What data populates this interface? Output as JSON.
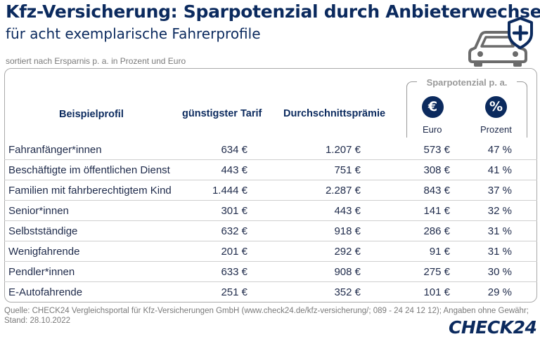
{
  "title": "Kfz-Versicherung: Sparpotenzial durch Anbieterwechsel",
  "subtitle": "für acht exemplarische Fahrerprofile",
  "caption": "sortiert nach Ersparnis p. a. in Prozent und Euro",
  "icons": {
    "car": "car-shield-plus-icon",
    "euro": "euro-icon",
    "percent": "percent-icon"
  },
  "colors": {
    "primary": "#0b2a5e",
    "muted": "#9a9a9a"
  },
  "headers": {
    "profile": "Beispielprofil",
    "cheapest": "günstigster Tarif",
    "average": "Durchschnittsprämie",
    "savings_group": "Sparpotenzial p. a.",
    "euro_symbol": "€",
    "percent_symbol": "%",
    "euro_label": "Euro",
    "percent_label": "Prozent"
  },
  "chart_data": {
    "type": "table",
    "columns": [
      "Beispielprofil",
      "günstigster Tarif",
      "Durchschnittsprämie",
      "Sparpotenzial p. a. Euro",
      "Sparpotenzial p. a. Prozent"
    ],
    "rows": [
      {
        "profile": "Fahranfänger*innen",
        "cheapest": "634 €",
        "average": "1.207 €",
        "save_eur": "573 €",
        "save_pct": "47 %"
      },
      {
        "profile": "Beschäftigte im öffentlichen Dienst",
        "cheapest": "443 €",
        "average": "751 €",
        "save_eur": "308 €",
        "save_pct": "41 %"
      },
      {
        "profile": "Familien mit fahrberechtigtem Kind",
        "cheapest": "1.444 €",
        "average": "2.287 €",
        "save_eur": "843 €",
        "save_pct": "37 %"
      },
      {
        "profile": "Senior*innen",
        "cheapest": "301 €",
        "average": "443 €",
        "save_eur": "141 €",
        "save_pct": "32 %"
      },
      {
        "profile": "Selbstständige",
        "cheapest": "632 €",
        "average": "918 €",
        "save_eur": "286 €",
        "save_pct": "31 %"
      },
      {
        "profile": "Wenigfahrende",
        "cheapest": "201 €",
        "average": "292 €",
        "save_eur": "91 €",
        "save_pct": "31 %"
      },
      {
        "profile": "Pendler*innen",
        "cheapest": "633 €",
        "average": "908 €",
        "save_eur": "275 €",
        "save_pct": "30 %"
      },
      {
        "profile": "E-Autofahrende",
        "cheapest": "251 €",
        "average": "352 €",
        "save_eur": "101 €",
        "save_pct": "29 %"
      }
    ]
  },
  "source": {
    "line1": "Quelle: CHECK24 Vergleichsportal für Kfz-Versicherungen GmbH (www.check24.de/kfz-versicherung/; 089 - 24 24 12 12); Angaben ohne Gewähr;",
    "line2": "Stand: 28.10.2022"
  },
  "logo": "CHECK24"
}
